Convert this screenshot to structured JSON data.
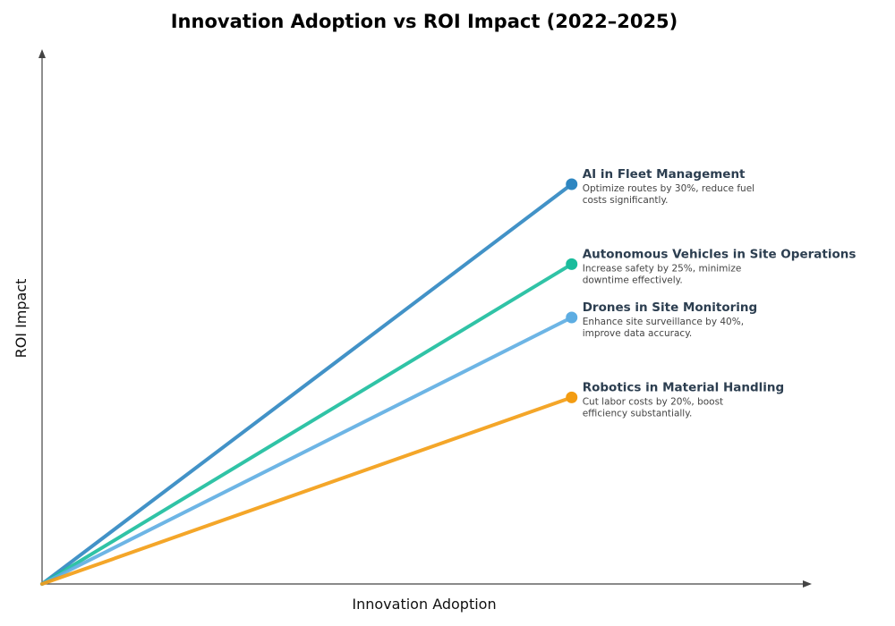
{
  "chart_data": {
    "type": "line",
    "title": "Innovation Adoption vs ROI Impact (2022–2025)",
    "xlabel": "Innovation Adoption",
    "ylabel": "ROI Impact",
    "xlim": [
      0,
      1.45
    ],
    "ylim": [
      0,
      1
    ],
    "grid": false,
    "series": [
      {
        "name": "AI in Fleet Management",
        "description_lines": [
          "Optimize routes by 30%, reduce fuel",
          "costs significantly."
        ],
        "color": "#2e86c1",
        "x": [
          0,
          1
        ],
        "y": [
          0,
          0.75
        ]
      },
      {
        "name": "Autonomous Vehicles in Site Operations",
        "description_lines": [
          "Increase safety by 25%, minimize",
          "downtime effectively."
        ],
        "color": "#1abc9c",
        "x": [
          0,
          1
        ],
        "y": [
          0,
          0.6
        ]
      },
      {
        "name": "Drones in Site Monitoring",
        "description_lines": [
          "Enhance site surveillance by 40%,",
          "improve data accuracy."
        ],
        "color": "#5dade2",
        "x": [
          0,
          1
        ],
        "y": [
          0,
          0.5
        ]
      },
      {
        "name": "Robotics in Material Handling",
        "description_lines": [
          "Cut labor costs by 20%, boost",
          "efficiency substantially."
        ],
        "color": "#f39c12",
        "x": [
          0,
          1
        ],
        "y": [
          0,
          0.35
        ]
      }
    ]
  }
}
